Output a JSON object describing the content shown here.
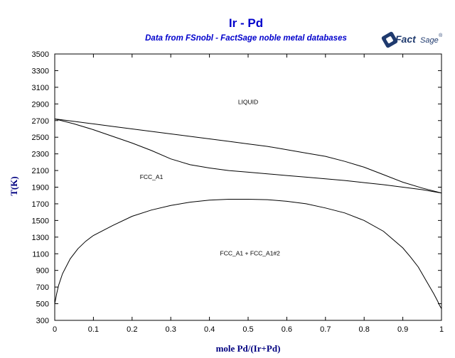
{
  "chart_data": {
    "type": "line",
    "title": "Ir - Pd",
    "subtitle": "Data from FSnobl - FactSage noble metal databases",
    "xlabel": "mole Pd/(Ir+Pd)",
    "ylabel": "T(K)",
    "xlim": [
      0,
      1
    ],
    "ylim": [
      300,
      3500
    ],
    "xticks": [
      0,
      0.1,
      0.2,
      0.3,
      0.4,
      0.5,
      0.6,
      0.7,
      0.8,
      0.9,
      1
    ],
    "xtick_labels": [
      "0",
      "0.1",
      "0.2",
      "0.3",
      "0.4",
      "0.5",
      "0.6",
      "0.7",
      "0.8",
      "0.9",
      "1"
    ],
    "yticks": [
      300,
      500,
      700,
      900,
      1100,
      1300,
      1500,
      1700,
      1900,
      2100,
      2300,
      2500,
      2700,
      2900,
      3100,
      3300,
      3500
    ],
    "ytick_labels": [
      "300",
      "500",
      "700",
      "900",
      "1100",
      "1300",
      "1500",
      "1700",
      "1900",
      "2100",
      "2300",
      "2500",
      "2700",
      "2900",
      "3100",
      "3300",
      "3500"
    ],
    "grid": false,
    "series": [
      {
        "x": [
          0,
          0.05,
          0.1,
          0.15,
          0.2,
          0.25,
          0.3,
          0.35,
          0.4,
          0.45,
          0.5,
          0.55,
          0.6,
          0.65,
          0.7,
          0.75,
          0.8,
          0.85,
          0.9,
          0.95,
          1
        ],
        "y": [
          2720,
          2690,
          2660,
          2630,
          2600,
          2570,
          2540,
          2510,
          2480,
          2450,
          2420,
          2390,
          2350,
          2310,
          2270,
          2210,
          2140,
          2050,
          1960,
          1890,
          1830
        ]
      },
      {
        "x": [
          0,
          0.05,
          0.1,
          0.15,
          0.2,
          0.25,
          0.3,
          0.35,
          0.4,
          0.45,
          0.5,
          0.55,
          0.6,
          0.65,
          0.7,
          0.75,
          0.8,
          0.85,
          0.9,
          0.95,
          1
        ],
        "y": [
          2720,
          2660,
          2590,
          2510,
          2430,
          2340,
          2240,
          2170,
          2130,
          2100,
          2080,
          2060,
          2040,
          2020,
          2000,
          1980,
          1955,
          1930,
          1900,
          1870,
          1830
        ]
      },
      {
        "x": [
          0,
          0.005,
          0.01,
          0.02,
          0.04,
          0.06,
          0.08,
          0.1,
          0.15,
          0.2,
          0.25,
          0.3,
          0.35,
          0.4,
          0.45,
          0.5,
          0.55,
          0.6,
          0.65,
          0.7,
          0.75,
          0.8,
          0.85,
          0.9,
          0.92,
          0.94,
          0.96,
          0.98,
          0.99,
          0.995,
          1
        ],
        "y": [
          500,
          620,
          720,
          860,
          1040,
          1160,
          1250,
          1320,
          1440,
          1550,
          1625,
          1680,
          1720,
          1745,
          1755,
          1755,
          1750,
          1730,
          1700,
          1650,
          1590,
          1500,
          1370,
          1170,
          1060,
          940,
          780,
          620,
          530,
          480,
          440
        ]
      }
    ],
    "annotations": [
      {
        "text": "LIQUID",
        "x": 0.5,
        "y": 2900
      },
      {
        "text": "FCC_A1",
        "x": 0.25,
        "y": 2000
      },
      {
        "text": "FCC_A1 + FCC_A1#2",
        "x": 0.505,
        "y": 1080
      }
    ],
    "logo": {
      "text": "FactSage",
      "trademark": "®"
    },
    "colors": {
      "title": "#0000cc",
      "axislabel": "#000080",
      "line": "#000000",
      "logo": "#1f3a6e"
    }
  }
}
